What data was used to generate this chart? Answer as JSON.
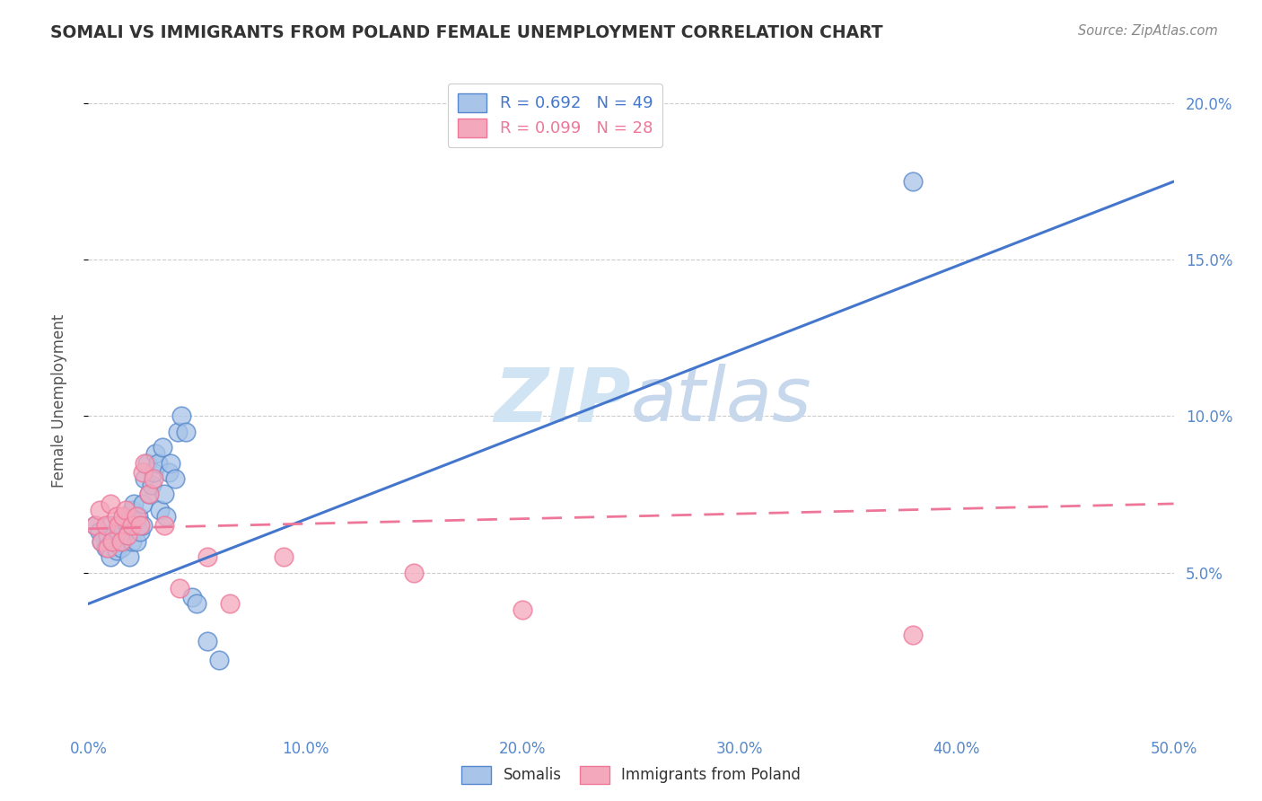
{
  "title": "SOMALI VS IMMIGRANTS FROM POLAND FEMALE UNEMPLOYMENT CORRELATION CHART",
  "source": "Source: ZipAtlas.com",
  "ylabel": "Female Unemployment",
  "xlim": [
    0.0,
    0.5
  ],
  "ylim": [
    0.0,
    0.21
  ],
  "xticks": [
    0.0,
    0.1,
    0.2,
    0.3,
    0.4,
    0.5
  ],
  "yticks": [
    0.05,
    0.1,
    0.15,
    0.2
  ],
  "ytick_labels": [
    "5.0%",
    "10.0%",
    "15.0%",
    "20.0%"
  ],
  "xtick_labels": [
    "0.0%",
    "10.0%",
    "20.0%",
    "30.0%",
    "40.0%",
    "50.0%"
  ],
  "somali_R": "R = 0.692",
  "somali_N": "N = 49",
  "poland_R": "R = 0.099",
  "poland_N": "N = 28",
  "somali_color": "#A8C4E8",
  "poland_color": "#F4A8BC",
  "somali_edge_color": "#5588CC",
  "poland_edge_color": "#EE7799",
  "somali_line_color": "#4477CC",
  "poland_line_color": "#EE7799",
  "tick_color": "#5588CC",
  "watermark_color": "#D8E8F8",
  "watermark_text_color": "#C8D8E8",
  "background_color": "#FFFFFF",
  "grid_color": "#CCCCCC",
  "somali_scatter_x": [
    0.003,
    0.005,
    0.006,
    0.008,
    0.009,
    0.01,
    0.01,
    0.011,
    0.012,
    0.013,
    0.014,
    0.015,
    0.015,
    0.016,
    0.017,
    0.018,
    0.018,
    0.019,
    0.02,
    0.02,
    0.021,
    0.022,
    0.022,
    0.023,
    0.024,
    0.025,
    0.025,
    0.026,
    0.027,
    0.028,
    0.029,
    0.03,
    0.031,
    0.032,
    0.033,
    0.034,
    0.035,
    0.036,
    0.037,
    0.038,
    0.04,
    0.041,
    0.043,
    0.045,
    0.048,
    0.05,
    0.055,
    0.06,
    0.38
  ],
  "somali_scatter_y": [
    0.065,
    0.063,
    0.06,
    0.058,
    0.062,
    0.065,
    0.055,
    0.06,
    0.062,
    0.057,
    0.063,
    0.065,
    0.058,
    0.06,
    0.068,
    0.065,
    0.062,
    0.055,
    0.07,
    0.06,
    0.072,
    0.065,
    0.06,
    0.068,
    0.063,
    0.072,
    0.065,
    0.08,
    0.085,
    0.075,
    0.078,
    0.082,
    0.088,
    0.085,
    0.07,
    0.09,
    0.075,
    0.068,
    0.082,
    0.085,
    0.08,
    0.095,
    0.1,
    0.095,
    0.042,
    0.04,
    0.028,
    0.022,
    0.175
  ],
  "poland_scatter_x": [
    0.003,
    0.005,
    0.006,
    0.008,
    0.009,
    0.01,
    0.011,
    0.013,
    0.014,
    0.015,
    0.016,
    0.017,
    0.018,
    0.02,
    0.022,
    0.024,
    0.025,
    0.026,
    0.028,
    0.03,
    0.035,
    0.042,
    0.055,
    0.065,
    0.09,
    0.15,
    0.2,
    0.38
  ],
  "poland_scatter_y": [
    0.065,
    0.07,
    0.06,
    0.065,
    0.058,
    0.072,
    0.06,
    0.068,
    0.065,
    0.06,
    0.068,
    0.07,
    0.062,
    0.065,
    0.068,
    0.065,
    0.082,
    0.085,
    0.075,
    0.08,
    0.065,
    0.045,
    0.055,
    0.04,
    0.055,
    0.05,
    0.038,
    0.03
  ],
  "somali_trendline_x": [
    0.0,
    0.5
  ],
  "somali_trendline_y": [
    0.04,
    0.175
  ],
  "poland_trendline_x": [
    0.0,
    0.5
  ],
  "poland_trendline_y": [
    0.064,
    0.072
  ],
  "legend_label1": "Somalis",
  "legend_label2": "Immigrants from Poland"
}
